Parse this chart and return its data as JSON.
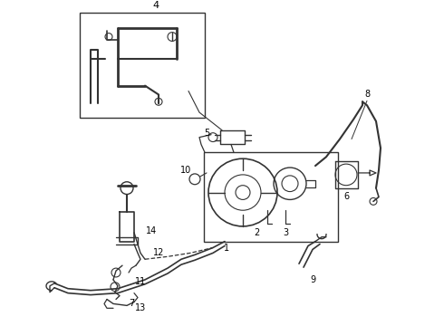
{
  "background_color": "#ffffff",
  "line_color": "#333333",
  "fig_width": 4.9,
  "fig_height": 3.6,
  "dpi": 100
}
